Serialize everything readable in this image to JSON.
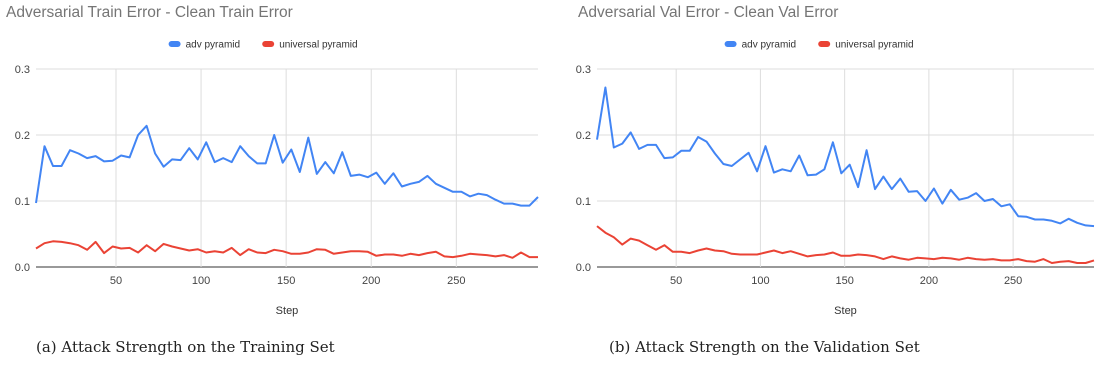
{
  "chart_data": [
    {
      "type": "line",
      "title": "Adversarial Train Error - Clean Train Error",
      "caption": "(a) Attack Strength on the Training Set",
      "xlabel": "Step",
      "ylabel": "",
      "xlim": [
        3,
        298
      ],
      "ylim": [
        0,
        0.3
      ],
      "xticks": [
        50,
        100,
        150,
        200,
        250
      ],
      "xtick_labels": [
        "50",
        "100",
        "150",
        "200",
        "250"
      ],
      "yticks": [
        0.0,
        0.1,
        0.2,
        0.3
      ],
      "ytick_labels": [
        "0.0",
        "0.1",
        "0.2",
        "0.3"
      ],
      "grid": true,
      "legend_position": "top-center",
      "x": [
        3,
        8,
        13,
        18,
        23,
        28,
        33,
        38,
        43,
        48,
        53,
        58,
        63,
        68,
        73,
        78,
        83,
        88,
        93,
        98,
        103,
        108,
        113,
        118,
        123,
        128,
        133,
        138,
        143,
        148,
        153,
        158,
        163,
        168,
        173,
        178,
        183,
        188,
        193,
        198,
        203,
        208,
        213,
        218,
        223,
        228,
        233,
        238,
        243,
        248,
        253,
        258,
        263,
        268,
        273,
        278,
        283,
        288,
        293,
        298
      ],
      "series": [
        {
          "name": "adv pyramid",
          "color": "#4285f4",
          "values": [
            0.097,
            0.183,
            0.153,
            0.153,
            0.177,
            0.172,
            0.165,
            0.168,
            0.16,
            0.161,
            0.169,
            0.166,
            0.2,
            0.214,
            0.172,
            0.152,
            0.163,
            0.162,
            0.18,
            0.163,
            0.189,
            0.159,
            0.165,
            0.159,
            0.183,
            0.168,
            0.157,
            0.157,
            0.2,
            0.158,
            0.178,
            0.144,
            0.196,
            0.141,
            0.159,
            0.142,
            0.174,
            0.138,
            0.14,
            0.136,
            0.143,
            0.126,
            0.142,
            0.122,
            0.126,
            0.129,
            0.138,
            0.126,
            0.12,
            0.114,
            0.114,
            0.107,
            0.111,
            0.109,
            0.102,
            0.096,
            0.096,
            0.093,
            0.093,
            0.106
          ]
        },
        {
          "name": "universal pyramid",
          "color": "#ea4335",
          "values": [
            0.028,
            0.036,
            0.039,
            0.038,
            0.036,
            0.033,
            0.026,
            0.038,
            0.021,
            0.031,
            0.028,
            0.029,
            0.022,
            0.033,
            0.024,
            0.035,
            0.031,
            0.028,
            0.025,
            0.027,
            0.022,
            0.024,
            0.022,
            0.029,
            0.018,
            0.027,
            0.022,
            0.021,
            0.026,
            0.024,
            0.02,
            0.02,
            0.022,
            0.027,
            0.026,
            0.02,
            0.022,
            0.024,
            0.024,
            0.023,
            0.017,
            0.019,
            0.019,
            0.017,
            0.02,
            0.018,
            0.021,
            0.023,
            0.016,
            0.015,
            0.017,
            0.02,
            0.019,
            0.018,
            0.016,
            0.018,
            0.014,
            0.022,
            0.015,
            0.015
          ]
        }
      ]
    },
    {
      "type": "line",
      "title": "Adversarial Val Error - Clean Val Error",
      "caption": "(b) Attack Strength on the Validation Set",
      "xlabel": "Step",
      "ylabel": "",
      "xlim": [
        3,
        298
      ],
      "ylim": [
        0,
        0.3
      ],
      "xticks": [
        50,
        100,
        150,
        200,
        250
      ],
      "xtick_labels": [
        "50",
        "100",
        "150",
        "200",
        "250"
      ],
      "yticks": [
        0.0,
        0.1,
        0.2,
        0.3
      ],
      "ytick_labels": [
        "0.0",
        "0.1",
        "0.2",
        "0.3"
      ],
      "grid": true,
      "legend_position": "top-center",
      "x": [
        3,
        8,
        13,
        18,
        23,
        28,
        33,
        38,
        43,
        48,
        53,
        58,
        63,
        68,
        73,
        78,
        83,
        88,
        93,
        98,
        103,
        108,
        113,
        118,
        123,
        128,
        133,
        138,
        143,
        148,
        153,
        158,
        163,
        168,
        173,
        178,
        183,
        188,
        193,
        198,
        203,
        208,
        213,
        218,
        223,
        228,
        233,
        238,
        243,
        248,
        253,
        258,
        263,
        268,
        273,
        278,
        283,
        288,
        293,
        298
      ],
      "series": [
        {
          "name": "adv pyramid",
          "color": "#4285f4",
          "values": [
            0.193,
            0.272,
            0.181,
            0.187,
            0.204,
            0.179,
            0.185,
            0.185,
            0.165,
            0.166,
            0.176,
            0.176,
            0.197,
            0.19,
            0.172,
            0.156,
            0.153,
            0.163,
            0.173,
            0.145,
            0.183,
            0.143,
            0.148,
            0.145,
            0.169,
            0.139,
            0.14,
            0.148,
            0.189,
            0.142,
            0.155,
            0.121,
            0.177,
            0.118,
            0.137,
            0.118,
            0.134,
            0.114,
            0.115,
            0.1,
            0.119,
            0.096,
            0.117,
            0.102,
            0.105,
            0.112,
            0.1,
            0.103,
            0.092,
            0.095,
            0.077,
            0.076,
            0.072,
            0.072,
            0.07,
            0.066,
            0.073,
            0.067,
            0.063,
            0.062
          ]
        },
        {
          "name": "universal pyramid",
          "color": "#ea4335",
          "values": [
            0.062,
            0.052,
            0.045,
            0.034,
            0.043,
            0.04,
            0.033,
            0.026,
            0.033,
            0.023,
            0.023,
            0.021,
            0.025,
            0.028,
            0.025,
            0.024,
            0.02,
            0.019,
            0.019,
            0.019,
            0.022,
            0.025,
            0.021,
            0.024,
            0.02,
            0.016,
            0.018,
            0.019,
            0.022,
            0.017,
            0.017,
            0.019,
            0.018,
            0.016,
            0.012,
            0.016,
            0.013,
            0.011,
            0.014,
            0.013,
            0.012,
            0.014,
            0.013,
            0.011,
            0.014,
            0.012,
            0.011,
            0.012,
            0.01,
            0.01,
            0.012,
            0.009,
            0.008,
            0.012,
            0.006,
            0.008,
            0.009,
            0.006,
            0.006,
            0.01
          ]
        }
      ]
    }
  ]
}
